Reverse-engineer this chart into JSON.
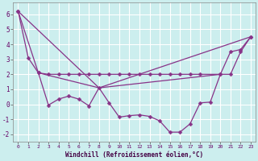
{
  "xlabel": "Windchill (Refroidissement éolien,°C)",
  "background_color": "#cceeee",
  "grid_color": "#aadddd",
  "line_color": "#883388",
  "xlim_min": -0.5,
  "xlim_max": 23.5,
  "ylim_min": -2.5,
  "ylim_max": 6.8,
  "yticks": [
    -2,
    -1,
    0,
    1,
    2,
    3,
    4,
    5,
    6
  ],
  "xticks": [
    0,
    1,
    2,
    3,
    4,
    5,
    6,
    7,
    8,
    9,
    10,
    11,
    12,
    13,
    14,
    15,
    16,
    17,
    18,
    19,
    20,
    21,
    22,
    23
  ],
  "series1_x": [
    0,
    1,
    2,
    3,
    4,
    5,
    6,
    7,
    8,
    9,
    10,
    11,
    12,
    13,
    14,
    15,
    16,
    17,
    18,
    20,
    21,
    22,
    23
  ],
  "series1_y": [
    6.2,
    3.1,
    2.1,
    2.0,
    2.0,
    2.0,
    2.0,
    2.0,
    2.0,
    2.0,
    2.0,
    2.0,
    2.0,
    2.0,
    2.0,
    2.0,
    2.0,
    2.0,
    2.0,
    2.0,
    2.0,
    3.5,
    4.5
  ],
  "series2_x": [
    0,
    2,
    3,
    4,
    5,
    6,
    7,
    8,
    9,
    10,
    11,
    12,
    13,
    14,
    15,
    16,
    17,
    18,
    19,
    20,
    21,
    22,
    23
  ],
  "series2_y": [
    6.2,
    2.1,
    -0.05,
    0.35,
    0.55,
    0.35,
    -0.1,
    1.1,
    0.1,
    -0.85,
    -0.75,
    -0.7,
    -0.8,
    -1.1,
    -1.85,
    -1.85,
    -1.3,
    0.1,
    0.15,
    2.0,
    3.5,
    3.65,
    4.5
  ],
  "series3_x": [
    0,
    8,
    23
  ],
  "series3_y": [
    6.2,
    1.1,
    4.5
  ],
  "series4_x": [
    2,
    8,
    20
  ],
  "series4_y": [
    2.1,
    1.1,
    2.0
  ]
}
